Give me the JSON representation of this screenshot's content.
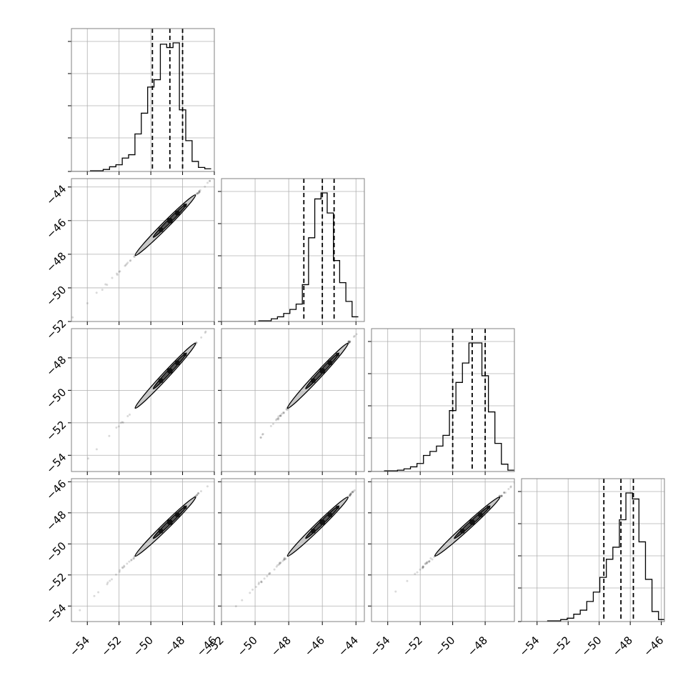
{
  "chart_data": {
    "type": "corner",
    "grid": true,
    "n_params": 4,
    "params": [
      {
        "range": [
          -55,
          -46
        ],
        "ticks": [
          -54,
          -52,
          -50,
          -48,
          -46
        ],
        "quantiles": [
          -49.9,
          -48.8,
          -48.0
        ]
      },
      {
        "range": [
          -52,
          -43.5
        ],
        "ticks": [
          -52,
          -50,
          -48,
          -46,
          -44
        ],
        "quantiles": [
          -47.1,
          -46.0,
          -45.3
        ]
      },
      {
        "range": [
          -55,
          -46.2
        ],
        "ticks": [
          -54,
          -52,
          -50,
          -48
        ],
        "quantiles": [
          -50.0,
          -48.8,
          -48.0
        ]
      },
      {
        "range": [
          -55,
          -45.8
        ],
        "ticks": [
          -54,
          -52,
          -50,
          -48,
          -46
        ],
        "quantiles": [
          -49.7,
          -48.6,
          -47.8
        ]
      }
    ],
    "histograms": [
      {
        "bins": [
          -55.0,
          -54.6,
          -54.2,
          -53.8,
          -53.4,
          -53.0,
          -52.6,
          -52.2,
          -51.8,
          -51.4,
          -51.0,
          -50.6,
          -50.2,
          -49.8,
          -49.4,
          -49.0,
          -48.6,
          -48.2,
          -47.8,
          -47.4,
          -47.0,
          -46.6,
          -46.2
        ],
        "counts": [
          0,
          0,
          0,
          1,
          1,
          3,
          7,
          10,
          20,
          25,
          56,
          87,
          126,
          137,
          190,
          185,
          192,
          92,
          46,
          15,
          6,
          4
        ]
      },
      {
        "bins": [
          -52.0,
          -51.63,
          -51.26,
          -50.89,
          -50.52,
          -50.15,
          -49.78,
          -49.41,
          -49.04,
          -48.67,
          -48.3,
          -47.93,
          -47.56,
          -47.19,
          -46.82,
          -46.45,
          -46.08,
          -45.71,
          -45.34,
          -44.97,
          -44.6,
          -44.23,
          -43.86
        ],
        "counts": [
          0,
          0,
          0,
          0,
          0,
          0,
          1,
          1,
          4,
          7,
          12,
          18,
          26,
          55,
          125,
          183,
          192,
          162,
          91,
          58,
          30,
          7
        ]
      },
      {
        "bins": [
          -55.0,
          -54.6,
          -54.2,
          -53.8,
          -53.4,
          -53.0,
          -52.6,
          -52.2,
          -51.8,
          -51.4,
          -51.0,
          -50.6,
          -50.2,
          -49.8,
          -49.4,
          -49.0,
          -48.6,
          -48.2,
          -47.8,
          -47.4,
          -47.0,
          -46.6,
          -46.2
        ],
        "counts": [
          0,
          0,
          1,
          1,
          2,
          4,
          7,
          12,
          24,
          30,
          38,
          54,
          91,
          133,
          162,
          192,
          192,
          143,
          89,
          42,
          11,
          2
        ]
      },
      {
        "bins": [
          -55.0,
          -54.58,
          -54.16,
          -53.74,
          -53.32,
          -52.9,
          -52.48,
          -52.06,
          -51.64,
          -51.22,
          -50.8,
          -50.38,
          -49.96,
          -49.54,
          -49.12,
          -48.7,
          -48.28,
          -47.86,
          -47.44,
          -47.02,
          -46.6,
          -46.18,
          -45.76
        ],
        "counts": [
          0,
          0,
          0,
          0,
          1,
          1,
          3,
          5,
          11,
          17,
          30,
          44,
          66,
          93,
          111,
          152,
          192,
          183,
          119,
          63,
          15,
          3
        ]
      }
    ],
    "correlation": "strong positive linear",
    "scatter_center": [
      [
        -48.8,
        -46.0
      ],
      [
        -48.8,
        -48.8
      ],
      [
        -48.6,
        -48.6
      ]
    ]
  }
}
